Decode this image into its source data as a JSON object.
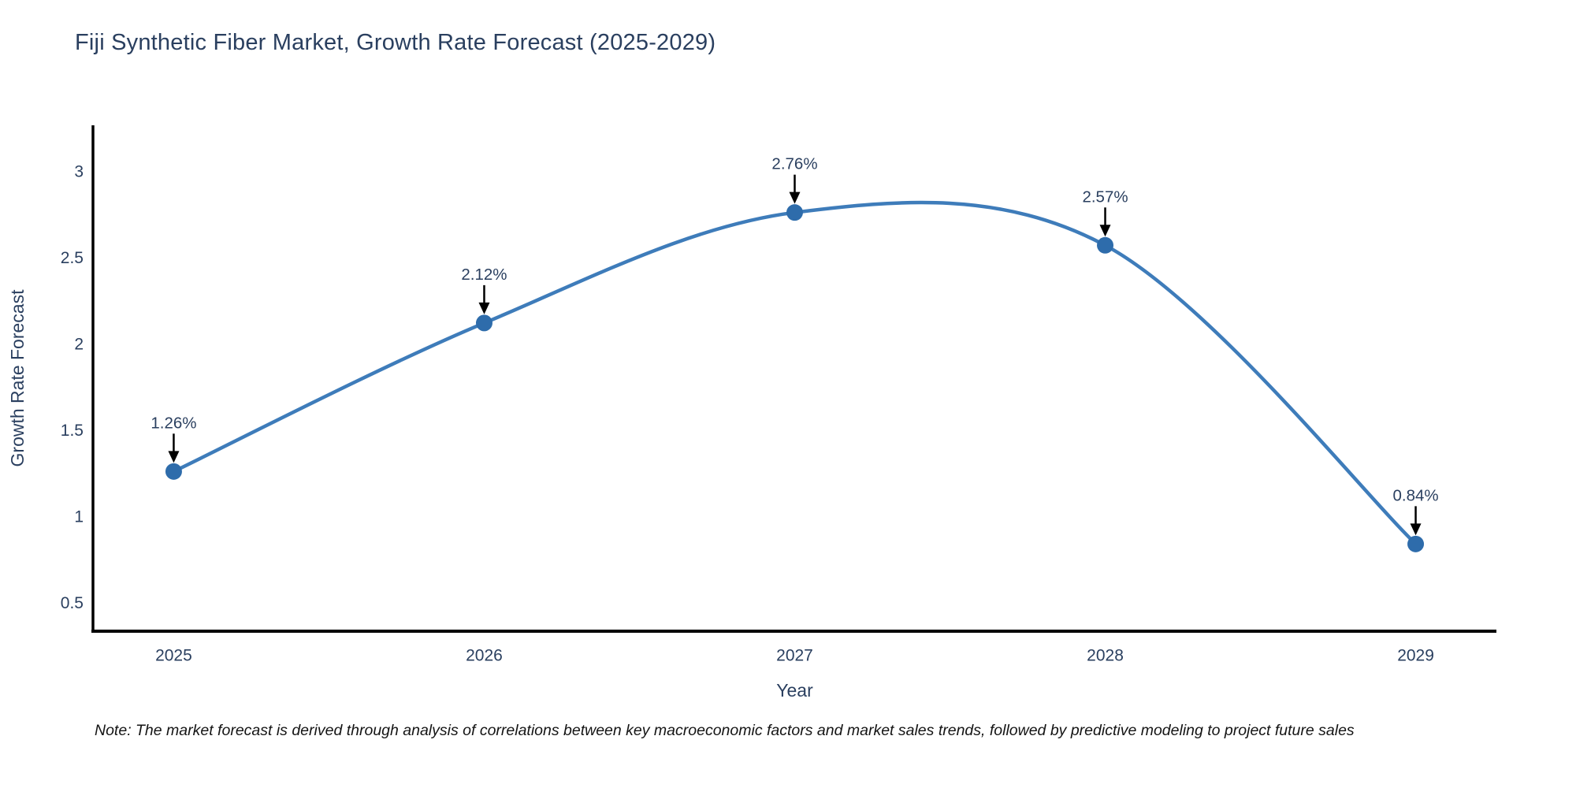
{
  "title": "Fiji Synthetic Fiber Market, Growth Rate Forecast (2025-2029)",
  "note": "Note: The market forecast is derived through analysis of correlations between key macroeconomic factors and market sales trends, followed by predictive modeling to project future sales",
  "chart_data": {
    "type": "line",
    "title": "Fiji Synthetic Fiber Market, Growth Rate Forecast (2025-2029)",
    "xlabel": "Year",
    "ylabel": "Growth Rate Forecast",
    "categories": [
      "2025",
      "2026",
      "2027",
      "2028",
      "2029"
    ],
    "x": [
      2025,
      2026,
      2027,
      2028,
      2029
    ],
    "values": [
      1.26,
      2.12,
      2.76,
      2.57,
      0.84
    ],
    "point_labels": [
      "1.26%",
      "2.12%",
      "2.76%",
      "2.57%",
      "0.84%"
    ],
    "yticks": [
      0.5,
      1,
      1.5,
      2,
      2.5,
      3
    ],
    "ytick_labels": [
      "0.5",
      "1",
      "1.5",
      "2",
      "2.5",
      "3"
    ],
    "xlim": [
      2024.74,
      2029.26
    ],
    "ylim": [
      0.335,
      3.265
    ],
    "grid": false,
    "legend": "none",
    "line_shape": "spline",
    "colors": {
      "line": "#3e7cba",
      "marker": "#2e6cab",
      "arrow": "#000000",
      "axis": "#000000",
      "text": "#2a3f5f"
    }
  }
}
